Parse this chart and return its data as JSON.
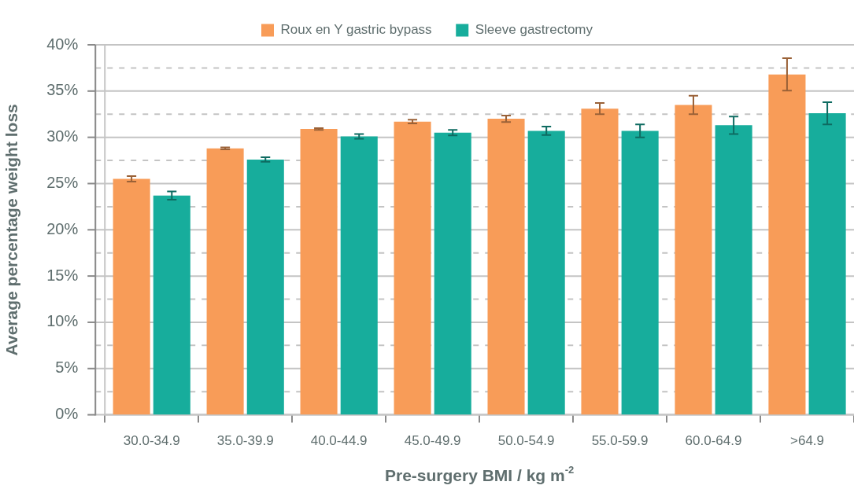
{
  "chart_data": {
    "type": "bar",
    "xlabel": "Pre-surgery BMI / kg m$^{-2}$",
    "ylabel": "Average percentage weight loss",
    "categories": [
      "30.0-34.9",
      "35.0-39.9",
      "40.0-44.9",
      "45.0-49.9",
      "50.0-54.9",
      "55.0-59.9",
      "60.0-64.9",
      ">64.9"
    ],
    "series": [
      {
        "name": "Roux en Y gastric bypass",
        "color": "#f89c58",
        "values": [
          25.5,
          28.8,
          30.9,
          31.7,
          32.0,
          33.1,
          33.5,
          36.8
        ],
        "errors": [
          0.3,
          0.1,
          0.1,
          0.2,
          0.35,
          0.6,
          1.0,
          1.75
        ]
      },
      {
        "name": "Sleeve gastrectomy",
        "color": "#17ad9c",
        "values": [
          23.7,
          27.6,
          30.1,
          30.5,
          30.7,
          30.7,
          31.3,
          32.6
        ],
        "errors": [
          0.45,
          0.25,
          0.25,
          0.3,
          0.45,
          0.7,
          0.95,
          1.2
        ]
      }
    ],
    "ylim": [
      0,
      40
    ],
    "yticks": [
      {
        "value": 0,
        "label": "0%"
      },
      {
        "value": 2.5,
        "label": null
      },
      {
        "value": 5,
        "label": "5%"
      },
      {
        "value": 7.5,
        "label": null
      },
      {
        "value": 10,
        "label": "10%"
      },
      {
        "value": 12.5,
        "label": null
      },
      {
        "value": 15,
        "label": "15%"
      },
      {
        "value": 17.5,
        "label": null
      },
      {
        "value": 20,
        "label": "20%"
      },
      {
        "value": 22.5,
        "label": null
      },
      {
        "value": 25,
        "label": "25%"
      },
      {
        "value": 27.5,
        "label": null
      },
      {
        "value": 30,
        "label": "30%"
      },
      {
        "value": 32.5,
        "label": null
      },
      {
        "value": 35,
        "label": "35%"
      },
      {
        "value": 37.5,
        "label": null
      },
      {
        "value": 40,
        "label": "40%"
      }
    ],
    "grid": "y",
    "legend": "top"
  }
}
